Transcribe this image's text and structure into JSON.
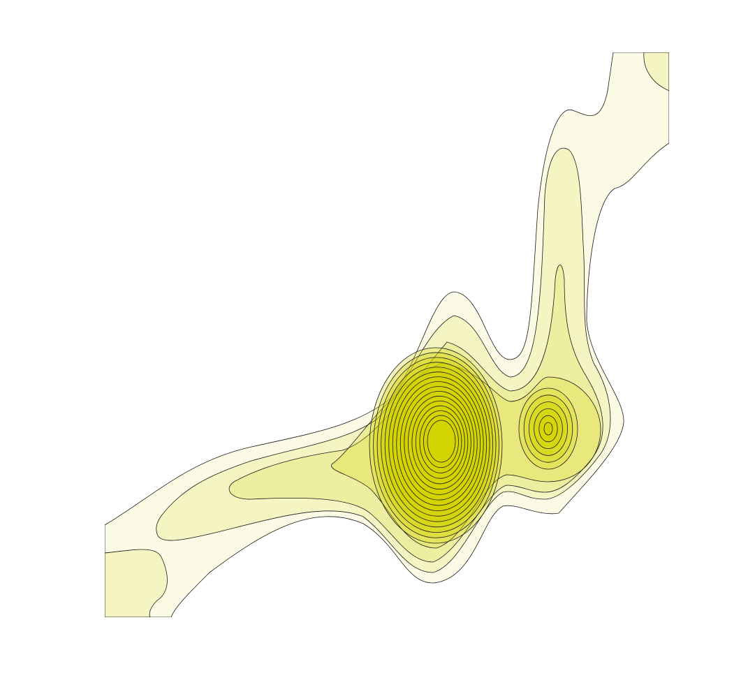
{
  "chart_data": {
    "type": "contour",
    "color": "#d4d400"
  }
}
